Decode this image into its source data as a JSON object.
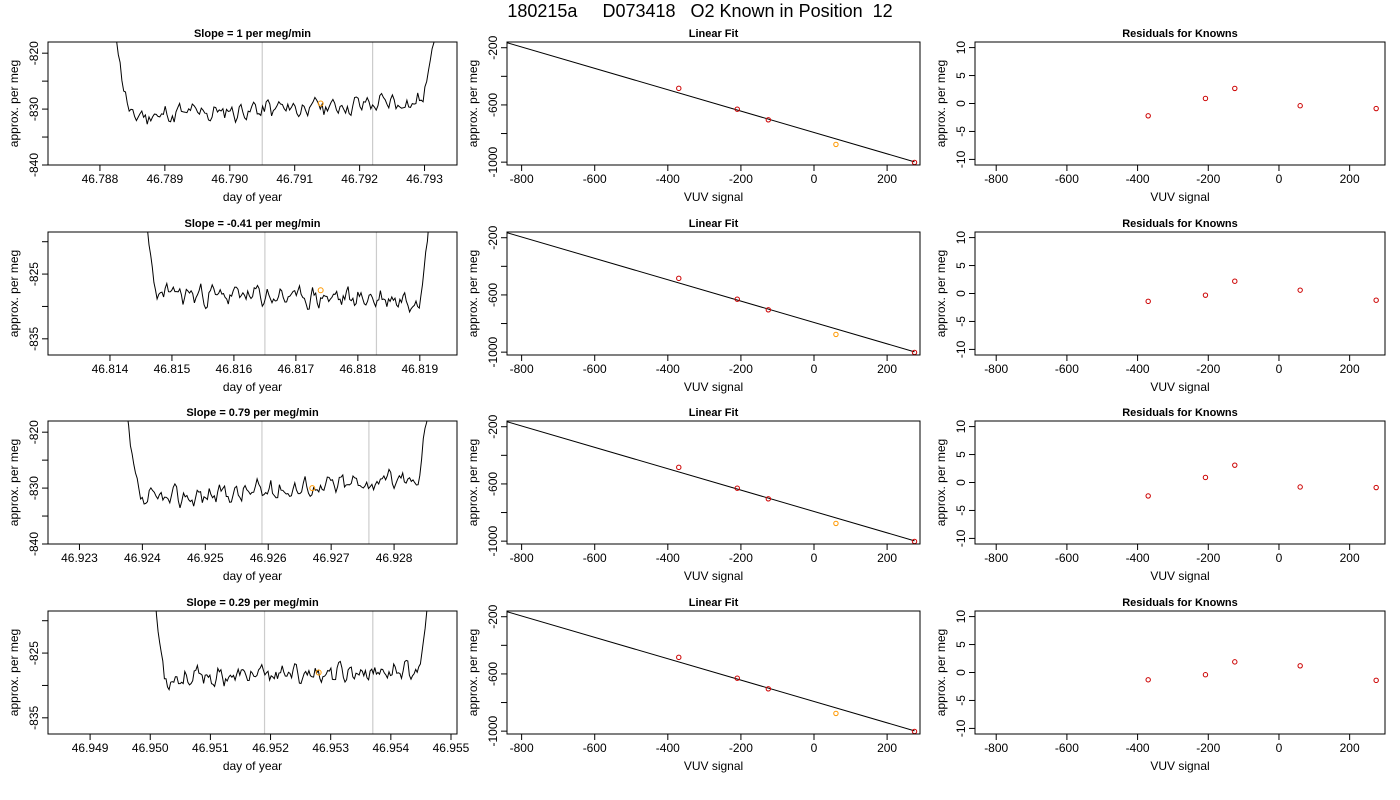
{
  "figure": {
    "title": "180215a     D073418   O2 Known in Position  12"
  },
  "colors": {
    "trace": "#000000",
    "marker_known": "#cc0000",
    "marker_highlight": "#ff9900",
    "vline": "#cccccc",
    "frame": "#000000"
  },
  "chart_data": [
    {
      "type": "line",
      "title": "Slope =  1  per meg/min",
      "xlabel": "day of year",
      "ylabel": "approx. per meg",
      "xlim": [
        46.7872,
        46.7935
      ],
      "ylim": [
        -840,
        -818
      ],
      "xticks": [
        46.788,
        46.789,
        46.79,
        46.791,
        46.792,
        46.793
      ],
      "xtick_labels": [
        "46.788",
        "46.789",
        "46.790",
        "46.791",
        "46.792",
        "46.793"
      ],
      "yticks": [
        -820,
        -830,
        -840
      ],
      "ytick_labels": [
        "-820",
        "-830",
        "-840"
      ],
      "yticks_minor": [
        -825,
        -835
      ],
      "vlines": [
        46.7905,
        46.7922
      ],
      "highlight": [
        46.7914,
        -829
      ],
      "trace_start": 46.7882,
      "trace_end": 46.7932,
      "baseline_start": -831.5,
      "baseline_end": -828.5,
      "noise": 2.3,
      "seed": 11
    },
    {
      "type": "scatter",
      "title": "Linear Fit",
      "xlabel": "VUV signal",
      "ylabel": "approx. per meg",
      "xlim": [
        -840,
        290
      ],
      "ylim": [
        -1020,
        -160
      ],
      "xticks": [
        -800,
        -600,
        -400,
        -200,
        0,
        200
      ],
      "xtick_labels": [
        "-800",
        "-600",
        "-400",
        "-200",
        "0",
        "200"
      ],
      "yticks": [
        -200,
        -600,
        -1000
      ],
      "ytick_labels": [
        "-200",
        "-600",
        "-1000"
      ],
      "yticks_minor": [
        -400,
        -800
      ],
      "line": [
        [
          -840,
          -165
        ],
        [
          275,
          -998
        ]
      ],
      "points": [
        [
          -370,
          -484
        ],
        [
          -210,
          -630
        ],
        [
          -125,
          -704
        ],
        [
          60,
          -876
        ],
        [
          275,
          -1002
        ]
      ],
      "highlight_index": 3
    },
    {
      "type": "scatter",
      "title": "Residuals for Knowns",
      "xlabel": "VUV signal",
      "ylabel": "approx. per meg",
      "xlim": [
        -860,
        300
      ],
      "ylim": [
        -11,
        11
      ],
      "xticks": [
        -800,
        -600,
        -400,
        -200,
        0,
        200
      ],
      "xtick_labels": [
        "-800",
        "-600",
        "-400",
        "-200",
        "0",
        "200"
      ],
      "yticks": [
        10,
        5,
        0,
        -5,
        -10
      ],
      "ytick_labels": [
        "10",
        "5",
        "0",
        "-5",
        "-10"
      ],
      "points": [
        [
          -370,
          -2.2
        ],
        [
          -208,
          0.9
        ],
        [
          -125,
          2.7
        ],
        [
          60,
          -0.4
        ],
        [
          275,
          -0.9
        ]
      ]
    },
    {
      "type": "line",
      "title": "Slope =  -0.41  per meg/min",
      "xlabel": "day of year",
      "ylabel": "approx. per meg",
      "xlim": [
        46.813,
        46.8196
      ],
      "ylim": [
        -837.5,
        -818.5
      ],
      "xticks": [
        46.814,
        46.815,
        46.816,
        46.817,
        46.818,
        46.819
      ],
      "xtick_labels": [
        "46.814",
        "46.815",
        "46.816",
        "46.817",
        "46.818",
        "46.819"
      ],
      "yticks": [
        -825,
        -835
      ],
      "ytick_labels": [
        "-825",
        "-835"
      ],
      "yticks_minor": [
        -820,
        -830
      ],
      "vlines": [
        46.8165,
        46.8183
      ],
      "highlight": [
        46.8174,
        -827.5
      ],
      "trace_start": 46.8145,
      "trace_end": 46.8192,
      "baseline_start": -828,
      "baseline_end": -829,
      "noise": 2.0,
      "seed": 23
    },
    {
      "type": "scatter",
      "title": "Linear Fit",
      "xlabel": "VUV signal",
      "ylabel": "approx. per meg",
      "xlim": [
        -840,
        290
      ],
      "ylim": [
        -1020,
        -160
      ],
      "xticks": [
        -800,
        -600,
        -400,
        -200,
        0,
        200
      ],
      "xtick_labels": [
        "-800",
        "-600",
        "-400",
        "-200",
        "0",
        "200"
      ],
      "yticks": [
        -200,
        -600,
        -1000
      ],
      "ytick_labels": [
        "-200",
        "-600",
        "-1000"
      ],
      "yticks_minor": [
        -400,
        -800
      ],
      "line": [
        [
          -840,
          -165
        ],
        [
          275,
          -998
        ]
      ],
      "points": [
        [
          -370,
          -484
        ],
        [
          -210,
          -630
        ],
        [
          -125,
          -704
        ],
        [
          60,
          -876
        ],
        [
          275,
          -1002
        ]
      ],
      "highlight_index": 3
    },
    {
      "type": "scatter",
      "title": "Residuals for Knowns",
      "xlabel": "VUV signal",
      "ylabel": "approx. per meg",
      "xlim": [
        -860,
        300
      ],
      "ylim": [
        -11,
        11
      ],
      "xticks": [
        -800,
        -600,
        -400,
        -200,
        0,
        200
      ],
      "xtick_labels": [
        "-800",
        "-600",
        "-400",
        "-200",
        "0",
        "200"
      ],
      "yticks": [
        10,
        5,
        0,
        -5,
        -10
      ],
      "ytick_labels": [
        "10",
        "5",
        "0",
        "-5",
        "-10"
      ],
      "points": [
        [
          -370,
          -1.4
        ],
        [
          -208,
          -0.3
        ],
        [
          -125,
          2.2
        ],
        [
          60,
          0.6
        ],
        [
          275,
          -1.2
        ]
      ]
    },
    {
      "type": "line",
      "title": "Slope =  0.79  per meg/min",
      "xlabel": "day of year",
      "ylabel": "approx. per meg",
      "xlim": [
        46.9225,
        46.929
      ],
      "ylim": [
        -840,
        -818
      ],
      "xticks": [
        46.923,
        46.924,
        46.925,
        46.926,
        46.927,
        46.928
      ],
      "xtick_labels": [
        "46.923",
        "46.924",
        "46.925",
        "46.926",
        "46.927",
        "46.928"
      ],
      "yticks": [
        -820,
        -830,
        -840
      ],
      "ytick_labels": [
        "-820",
        "-830",
        "-840"
      ],
      "yticks_minor": [
        -825,
        -835
      ],
      "vlines": [
        46.9259,
        46.9276
      ],
      "highlight": [
        46.9267,
        -830
      ],
      "trace_start": 46.9237,
      "trace_end": 46.9286,
      "baseline_start": -832.5,
      "baseline_end": -828,
      "noise": 2.3,
      "seed": 37
    },
    {
      "type": "scatter",
      "title": "Linear Fit",
      "xlabel": "VUV signal",
      "ylabel": "approx. per meg",
      "xlim": [
        -840,
        290
      ],
      "ylim": [
        -1020,
        -160
      ],
      "xticks": [
        -800,
        -600,
        -400,
        -200,
        0,
        200
      ],
      "xtick_labels": [
        "-800",
        "-600",
        "-400",
        "-200",
        "0",
        "200"
      ],
      "yticks": [
        -200,
        -600,
        -1000
      ],
      "ytick_labels": [
        "-200",
        "-600",
        "-1000"
      ],
      "yticks_minor": [
        -400,
        -800
      ],
      "line": [
        [
          -840,
          -165
        ],
        [
          275,
          -998
        ]
      ],
      "points": [
        [
          -370,
          -484
        ],
        [
          -210,
          -630
        ],
        [
          -125,
          -704
        ],
        [
          60,
          -876
        ],
        [
          275,
          -1002
        ]
      ],
      "highlight_index": 3
    },
    {
      "type": "scatter",
      "title": "Residuals for Knowns",
      "xlabel": "VUV signal",
      "ylabel": "approx. per meg",
      "xlim": [
        -860,
        300
      ],
      "ylim": [
        -11,
        11
      ],
      "xticks": [
        -800,
        -600,
        -400,
        -200,
        0,
        200
      ],
      "xtick_labels": [
        "-800",
        "-600",
        "-400",
        "-200",
        "0",
        "200"
      ],
      "yticks": [
        10,
        5,
        0,
        -5,
        -10
      ],
      "ytick_labels": [
        "10",
        "5",
        "0",
        "-5",
        "-10"
      ],
      "points": [
        [
          -370,
          -2.4
        ],
        [
          -208,
          0.9
        ],
        [
          -125,
          3.1
        ],
        [
          60,
          -0.8
        ],
        [
          275,
          -0.9
        ]
      ]
    },
    {
      "type": "line",
      "title": "Slope =  0.29  per meg/min",
      "xlabel": "day of year",
      "ylabel": "approx. per meg",
      "xlim": [
        46.9483,
        46.9551
      ],
      "ylim": [
        -837.5,
        -818.5
      ],
      "xticks": [
        46.949,
        46.95,
        46.951,
        46.952,
        46.953,
        46.954,
        46.955
      ],
      "xtick_labels": [
        "46.949",
        "46.950",
        "46.951",
        "46.952",
        "46.953",
        "46.954",
        "46.955"
      ],
      "yticks": [
        -825,
        -835
      ],
      "ytick_labels": [
        "-825",
        "-835"
      ],
      "yticks_minor": [
        -820,
        -830
      ],
      "vlines": [
        46.9519,
        46.9537
      ],
      "highlight": [
        46.9528,
        -828
      ],
      "trace_start": 46.95,
      "trace_end": 46.9547,
      "baseline_start": -829,
      "baseline_end": -827.5,
      "noise": 1.8,
      "seed": 53
    },
    {
      "type": "scatter",
      "title": "Linear Fit",
      "xlabel": "VUV signal",
      "ylabel": "approx. per meg",
      "xlim": [
        -840,
        290
      ],
      "ylim": [
        -1020,
        -160
      ],
      "xticks": [
        -800,
        -600,
        -400,
        -200,
        0,
        200
      ],
      "xtick_labels": [
        "-800",
        "-600",
        "-400",
        "-200",
        "0",
        "200"
      ],
      "yticks": [
        -200,
        -600,
        -1000
      ],
      "ytick_labels": [
        "-200",
        "-600",
        "-1000"
      ],
      "yticks_minor": [
        -400,
        -800
      ],
      "line": [
        [
          -840,
          -165
        ],
        [
          275,
          -998
        ]
      ],
      "points": [
        [
          -370,
          -484
        ],
        [
          -210,
          -630
        ],
        [
          -125,
          -704
        ],
        [
          60,
          -876
        ],
        [
          275,
          -1002
        ]
      ],
      "highlight_index": 3
    },
    {
      "type": "scatter",
      "title": "Residuals for Knowns",
      "xlabel": "VUV signal",
      "ylabel": "approx. per meg",
      "xlim": [
        -860,
        300
      ],
      "ylim": [
        -11,
        11
      ],
      "xticks": [
        -800,
        -600,
        -400,
        -200,
        0,
        200
      ],
      "xtick_labels": [
        "-800",
        "-600",
        "-400",
        "-200",
        "0",
        "200"
      ],
      "yticks": [
        10,
        5,
        0,
        -5,
        -10
      ],
      "ytick_labels": [
        "10",
        "5",
        "0",
        "-5",
        "-10"
      ],
      "points": [
        [
          -370,
          -1.3
        ],
        [
          -208,
          -0.4
        ],
        [
          -125,
          1.9
        ],
        [
          60,
          1.2
        ],
        [
          275,
          -1.4
        ]
      ]
    }
  ]
}
